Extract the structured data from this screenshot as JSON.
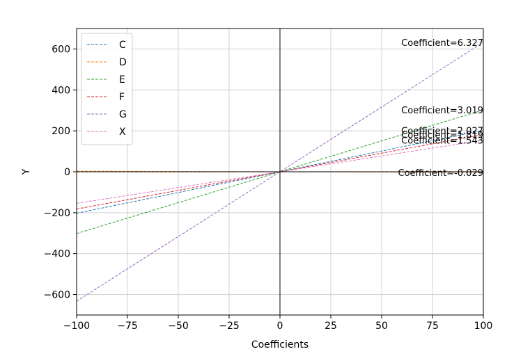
{
  "chart_data": {
    "type": "line",
    "title": "",
    "xlabel": "Coefficients",
    "ylabel": "Y",
    "xlim": [
      -100,
      100
    ],
    "ylim": [
      -700,
      700
    ],
    "xticks": [
      -100,
      -75,
      -50,
      -25,
      0,
      25,
      50,
      75,
      100
    ],
    "yticks": [
      -600,
      -400,
      -200,
      0,
      200,
      400,
      600
    ],
    "xtick_labels": [
      "−100",
      "−75",
      "−50",
      "−25",
      "0",
      "25",
      "50",
      "75",
      "100"
    ],
    "ytick_labels": [
      "−600",
      "−400",
      "−200",
      "0",
      "200",
      "400",
      "600"
    ],
    "grid": true,
    "legend_position": "top-left",
    "series": [
      {
        "name": "C",
        "coefficient": 2.027,
        "color": "#1f77b4",
        "x": [
          -100,
          100
        ],
        "y": [
          -202.7,
          202.7
        ]
      },
      {
        "name": "D",
        "coefficient": -0.029,
        "color": "#ff7f0e",
        "x": [
          -100,
          100
        ],
        "y": [
          2.9,
          -2.9
        ]
      },
      {
        "name": "E",
        "coefficient": 3.019,
        "color": "#2ca02c",
        "x": [
          -100,
          100
        ],
        "y": [
          -301.9,
          301.9
        ]
      },
      {
        "name": "F",
        "coefficient": 1.819,
        "color": "#d62728",
        "x": [
          -100,
          100
        ],
        "y": [
          -181.9,
          181.9
        ]
      },
      {
        "name": "G",
        "coefficient": 6.327,
        "color": "#9467bd",
        "x": [
          -100,
          100
        ],
        "y": [
          -632.7,
          632.7
        ]
      },
      {
        "name": "X",
        "coefficient": 1.543,
        "color": "#e377c2",
        "x": [
          -100,
          100
        ],
        "y": [
          -154.3,
          154.3
        ]
      }
    ],
    "annotations": [
      {
        "text": "Coefficient=2.027",
        "x": 100,
        "y": 202.7
      },
      {
        "text": "Coefficient=-0.029",
        "x": 100,
        "y": -2.9
      },
      {
        "text": "Coefficient=3.019",
        "x": 100,
        "y": 301.9
      },
      {
        "text": "Coefficient=1.819",
        "x": 100,
        "y": 181.9
      },
      {
        "text": "Coefficient=6.327",
        "x": 100,
        "y": 632.7
      },
      {
        "text": "Coefficient=1.543",
        "x": 100,
        "y": 154.3
      }
    ]
  }
}
